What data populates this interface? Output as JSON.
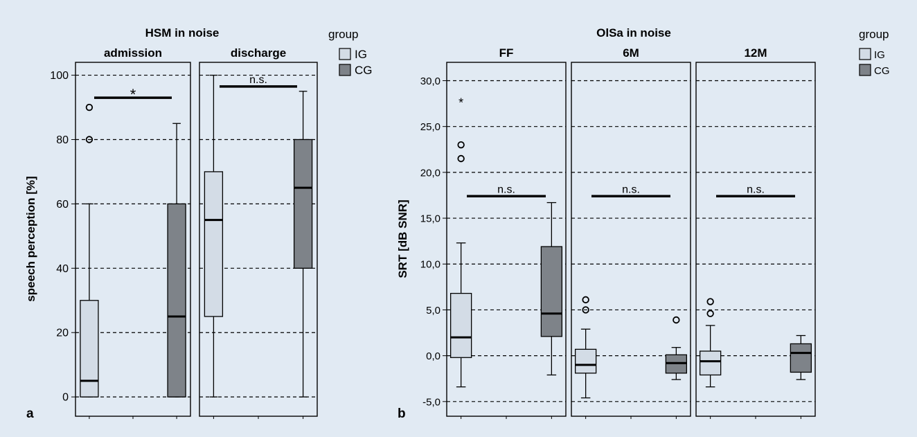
{
  "background": "#e1eaf3",
  "colors": {
    "IG": "#d3dce6",
    "CG": "#7e8389",
    "line": "#000000"
  },
  "panel_a": {
    "letter": "a",
    "title": "HSM in noise",
    "ylabel": "speech perception [%]",
    "legend": {
      "title": "group",
      "items": [
        "IG",
        "CG"
      ]
    }
  },
  "panel_b": {
    "letter": "b",
    "title": "OlSa in noise",
    "ylabel": "SRT [dB SNR]",
    "legend": {
      "title": "group",
      "items": [
        "IG",
        "CG"
      ]
    }
  },
  "chart_data": [
    {
      "type": "boxplot",
      "title": "HSM in noise",
      "ylabel": "speech perception [%]",
      "ylim": [
        -6,
        104
      ],
      "yticks": [
        0,
        20,
        40,
        60,
        80,
        100
      ],
      "ytick_labels": [
        "0",
        "20",
        "40",
        "60",
        "80",
        "100"
      ],
      "grid": "dashed",
      "legend": {
        "title": "group",
        "entries": [
          "IG",
          "CG"
        ],
        "placement": "right"
      },
      "facets": [
        {
          "label": "admission",
          "significance": "*",
          "sig_y": 93,
          "boxes": [
            {
              "group": "IG",
              "whisker_low": 0,
              "q1": 0,
              "median": 5,
              "q3": 30,
              "whisker_high": 60,
              "outliers": [
                80,
                90
              ],
              "extremes": []
            },
            {
              "group": "CG",
              "whisker_low": 0,
              "q1": 0,
              "median": 25,
              "q3": 60,
              "whisker_high": 85,
              "outliers": [],
              "extremes": []
            }
          ]
        },
        {
          "label": "discharge",
          "significance": "n.s.",
          "sig_y": 96.5,
          "boxes": [
            {
              "group": "IG",
              "whisker_low": 0,
              "q1": 25,
              "median": 55,
              "q3": 70,
              "whisker_high": 100,
              "outliers": [],
              "extremes": []
            },
            {
              "group": "CG",
              "whisker_low": 0,
              "q1": 40,
              "median": 65,
              "q3": 80,
              "whisker_high": 95,
              "outliers": [],
              "extremes": []
            }
          ]
        }
      ]
    },
    {
      "type": "boxplot",
      "title": "OlSa in noise",
      "ylabel": "SRT [dB SNR]",
      "ylim": [
        -6.6,
        32
      ],
      "yticks": [
        -5,
        0,
        5,
        10,
        15,
        20,
        25,
        30
      ],
      "ytick_labels": [
        "-5,0",
        "0,0",
        "5,0",
        "10,0",
        "15,0",
        "20,0",
        "25,0",
        "30,0"
      ],
      "grid": "dashed",
      "legend": {
        "title": "group",
        "entries": [
          "IG",
          "CG"
        ],
        "placement": "right"
      },
      "facets": [
        {
          "label": "FF",
          "significance": "n.s.",
          "sig_y": 17.4,
          "boxes": [
            {
              "group": "IG",
              "whisker_low": -3.4,
              "q1": -0.2,
              "median": 2.0,
              "q3": 6.8,
              "whisker_high": 12.3,
              "outliers": [
                21.5,
                23.0
              ],
              "extremes": [
                27.8
              ]
            },
            {
              "group": "CG",
              "whisker_low": -2.1,
              "q1": 2.1,
              "median": 4.6,
              "q3": 11.9,
              "whisker_high": 16.7,
              "outliers": [],
              "extremes": []
            }
          ]
        },
        {
          "label": "6M",
          "significance": "n.s.",
          "sig_y": 17.4,
          "boxes": [
            {
              "group": "IG",
              "whisker_low": -4.6,
              "q1": -1.9,
              "median": -1.0,
              "q3": 0.7,
              "whisker_high": 2.9,
              "outliers": [
                5.0,
                6.1
              ],
              "extremes": []
            },
            {
              "group": "CG",
              "whisker_low": -2.6,
              "q1": -1.9,
              "median": -0.8,
              "q3": 0.1,
              "whisker_high": 0.9,
              "outliers": [
                3.9
              ],
              "extremes": []
            }
          ]
        },
        {
          "label": "12M",
          "significance": "n.s.",
          "sig_y": 17.4,
          "boxes": [
            {
              "group": "IG",
              "whisker_low": -3.4,
              "q1": -2.1,
              "median": -0.6,
              "q3": 0.5,
              "whisker_high": 3.3,
              "outliers": [
                4.6,
                5.9
              ],
              "extremes": []
            },
            {
              "group": "CG",
              "whisker_low": -2.6,
              "q1": -1.8,
              "median": 0.3,
              "q3": 1.3,
              "whisker_high": 2.2,
              "outliers": [],
              "extremes": []
            }
          ]
        }
      ]
    }
  ]
}
